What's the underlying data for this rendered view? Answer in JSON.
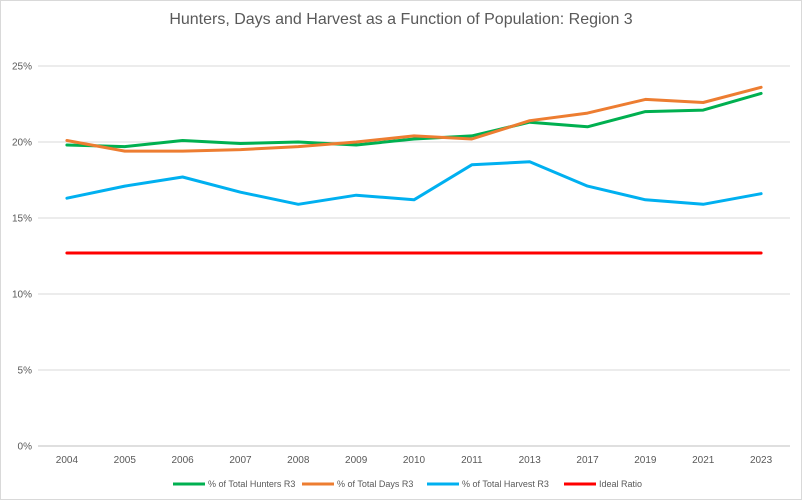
{
  "chart_data": {
    "type": "line",
    "title": "Hunters, Days and Harvest as a Function of Population: Region 3",
    "xlabel": "",
    "ylabel": "",
    "categories": [
      "2004",
      "2005",
      "2006",
      "2007",
      "2008",
      "2009",
      "2010",
      "2011",
      "2013",
      "2017",
      "2019",
      "2021",
      "2023"
    ],
    "ylim": [
      0,
      25
    ],
    "yticks": [
      0,
      5,
      10,
      15,
      20,
      25
    ],
    "ytick_labels": [
      "0%",
      "5%",
      "10%",
      "15%",
      "20%",
      "25%"
    ],
    "grid": true,
    "legend_position": "bottom",
    "series": [
      {
        "name": "% of Total Hunters R3",
        "color": "#00B050",
        "values": [
          19.8,
          19.7,
          20.1,
          19.9,
          20.0,
          19.8,
          20.2,
          20.4,
          21.3,
          21.0,
          22.0,
          22.1,
          23.2
        ]
      },
      {
        "name": "% of Total Days R3",
        "color": "#ED7D31",
        "values": [
          20.1,
          19.4,
          19.4,
          19.5,
          19.7,
          20.0,
          20.4,
          20.2,
          21.4,
          21.9,
          22.8,
          22.6,
          23.6
        ]
      },
      {
        "name": "% of Total Harvest R3",
        "color": "#00B0F0",
        "values": [
          16.3,
          17.1,
          17.7,
          16.7,
          15.9,
          16.5,
          16.2,
          18.5,
          18.7,
          17.1,
          16.2,
          15.9,
          16.6
        ]
      },
      {
        "name": "Ideal Ratio",
        "color": "#FF0000",
        "values": [
          12.7,
          12.7,
          12.7,
          12.7,
          12.7,
          12.7,
          12.7,
          12.7,
          12.7,
          12.7,
          12.7,
          12.7,
          12.7
        ]
      }
    ]
  }
}
